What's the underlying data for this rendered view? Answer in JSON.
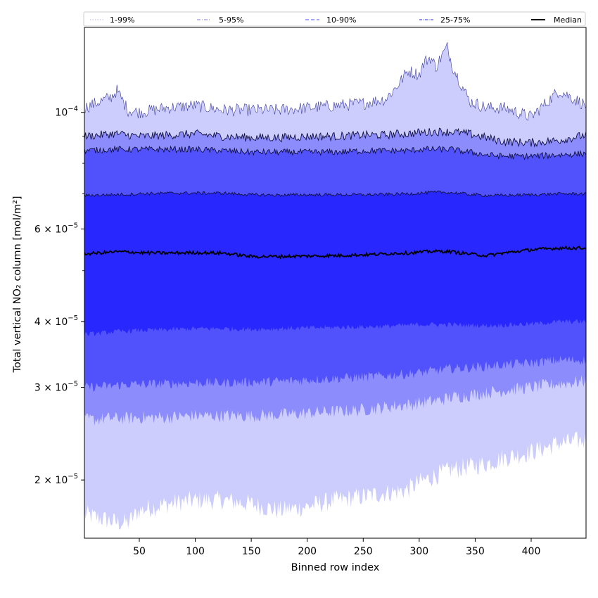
{
  "chart_data": {
    "type": "area",
    "title": "",
    "xlabel": "Binned row index",
    "ylabel": "Total vertical NO₂ column [mol/m²]",
    "y_scale": "log",
    "xlim": [
      1,
      449
    ],
    "ylim": [
      1.55e-05,
      0.000145
    ],
    "x_ticks": [
      50,
      100,
      150,
      200,
      250,
      300,
      350,
      400
    ],
    "y_ticks": [
      {
        "value": 2e-05,
        "mantissa": "2",
        "exponent": "−5"
      },
      {
        "value": 3e-05,
        "mantissa": "3",
        "exponent": "−5"
      },
      {
        "value": 4e-05,
        "mantissa": "4",
        "exponent": "−5"
      },
      {
        "value": 6e-05,
        "mantissa": "6",
        "exponent": "−5"
      },
      {
        "value": 0.0001,
        "mantissa": "10",
        "exponent": "−4"
      }
    ],
    "legend_placement": "top (horizontal strip)",
    "grid": false,
    "x": [
      1,
      25,
      30,
      40,
      50,
      75,
      100,
      125,
      150,
      175,
      200,
      225,
      250,
      270,
      280,
      290,
      300,
      305,
      310,
      315,
      320,
      325,
      330,
      335,
      345,
      360,
      375,
      400,
      425,
      449
    ],
    "series": [
      {
        "name": "1-99%",
        "style": "dotted",
        "color": "#c4c4ee",
        "fill": "#cccdfc",
        "lower": [
          1.72e-05,
          1.67e-05,
          1.66e-05,
          1.66e-05,
          1.75e-05,
          1.8e-05,
          1.83e-05,
          1.83e-05,
          1.8e-05,
          1.75e-05,
          1.78e-05,
          1.83e-05,
          1.86e-05,
          1.89e-05,
          1.9e-05,
          1.92e-05,
          1.98e-05,
          2e-05,
          2.02e-05,
          2.04e-05,
          2.06e-05,
          2.08e-05,
          2.1e-05,
          2.1e-05,
          2.12e-05,
          2.15e-05,
          2.2e-05,
          2.26e-05,
          2.35e-05,
          2.38e-05
        ],
        "upper": [
          0.000102,
          0.000107,
          0.00011,
          0.000101,
          0.0001,
          0.000102,
          0.000103,
          0.000101,
          0.000101,
          0.000101,
          0.000102,
          0.000103,
          0.000104,
          0.000106,
          0.000112,
          0.00012,
          0.000118,
          0.000125,
          0.000127,
          0.000122,
          0.000128,
          0.000133,
          0.000122,
          0.000116,
          0.000105,
          0.000102,
          0.000102,
          9.8e-05,
          0.00011,
          0.000103
        ]
      },
      {
        "name": "5-95%",
        "style": "dash-dot",
        "color": "#9999dd",
        "fill": "#8c8cfc",
        "lower": [
          2.6e-05,
          2.62e-05,
          2.62e-05,
          2.62e-05,
          2.63e-05,
          2.63e-05,
          2.65e-05,
          2.65e-05,
          2.65e-05,
          2.66e-05,
          2.68e-05,
          2.7e-05,
          2.72e-05,
          2.75e-05,
          2.77e-05,
          2.78e-05,
          2.8e-05,
          2.81e-05,
          2.82e-05,
          2.83e-05,
          2.84e-05,
          2.86e-05,
          2.88e-05,
          2.88e-05,
          2.9e-05,
          2.93e-05,
          2.96e-05,
          3e-05,
          3.05e-05,
          3.08e-05
        ],
        "upper": [
          9e-05,
          9.1e-05,
          9.1e-05,
          9.05e-05,
          9e-05,
          9.05e-05,
          9.1e-05,
          9e-05,
          8.95e-05,
          8.95e-05,
          9e-05,
          9e-05,
          9.05e-05,
          9.05e-05,
          9.1e-05,
          9.1e-05,
          9.15e-05,
          9.15e-05,
          9.18e-05,
          9.18e-05,
          9.2e-05,
          9.18e-05,
          9.18e-05,
          9.15e-05,
          9.1e-05,
          8.95e-05,
          8.8e-05,
          8.75e-05,
          8.85e-05,
          9.05e-05
        ]
      },
      {
        "name": "10-90%",
        "style": "dashed",
        "color": "#7070ee",
        "fill": "#5252fd",
        "lower": [
          3e-05,
          3.02e-05,
          3.03e-05,
          3.04e-05,
          3.04e-05,
          3.05e-05,
          3.06e-05,
          3.06e-05,
          3.07e-05,
          3.08e-05,
          3.1e-05,
          3.12e-05,
          3.14e-05,
          3.16e-05,
          3.17e-05,
          3.18e-05,
          3.2e-05,
          3.21e-05,
          3.22e-05,
          3.23e-05,
          3.24e-05,
          3.25e-05,
          3.26e-05,
          3.26e-05,
          3.27e-05,
          3.29e-05,
          3.31e-05,
          3.34e-05,
          3.38e-05,
          3.38e-05
        ],
        "upper": [
          8.45e-05,
          8.5e-05,
          8.5e-05,
          8.5e-05,
          8.5e-05,
          8.5e-05,
          8.5e-05,
          8.45e-05,
          8.4e-05,
          8.4e-05,
          8.4e-05,
          8.4e-05,
          8.45e-05,
          8.45e-05,
          8.45e-05,
          8.45e-05,
          8.5e-05,
          8.5e-05,
          8.5e-05,
          8.5e-05,
          8.5e-05,
          8.5e-05,
          8.5e-05,
          8.45e-05,
          8.4e-05,
          8.3e-05,
          8.25e-05,
          8.25e-05,
          8.3e-05,
          8.35e-05
        ]
      },
      {
        "name": "25-75%",
        "style": "dash-dot-dense",
        "color": "#5555dd",
        "fill": "#2828fe",
        "lower": [
          3.78e-05,
          3.82e-05,
          3.83e-05,
          3.84e-05,
          3.85e-05,
          3.86e-05,
          3.88e-05,
          3.88e-05,
          3.87e-05,
          3.88e-05,
          3.89e-05,
          3.9e-05,
          3.91e-05,
          3.92e-05,
          3.93e-05,
          3.94e-05,
          3.95e-05,
          3.95e-05,
          3.95e-05,
          3.95e-05,
          3.95e-05,
          3.95e-05,
          3.95e-05,
          3.94e-05,
          3.94e-05,
          3.93e-05,
          3.94e-05,
          3.96e-05,
          4e-05,
          4e-05
        ],
        "upper": [
          6.95e-05,
          6.97e-05,
          6.98e-05,
          6.98e-05,
          7e-05,
          7.02e-05,
          7.02e-05,
          7.02e-05,
          6.97e-05,
          6.96e-05,
          6.97e-05,
          6.97e-05,
          6.97e-05,
          6.98e-05,
          6.99e-05,
          7e-05,
          7.02e-05,
          7.03e-05,
          7.04e-05,
          7.04e-05,
          7.05e-05,
          7.04e-05,
          7.03e-05,
          7.02e-05,
          6.98e-05,
          6.95e-05,
          6.95e-05,
          6.97e-05,
          7e-05,
          7e-05
        ]
      },
      {
        "name": "Median",
        "style": "solid",
        "color": "#000000",
        "values": [
          5.38e-05,
          5.42e-05,
          5.43e-05,
          5.43e-05,
          5.41e-05,
          5.4e-05,
          5.41e-05,
          5.4e-05,
          5.32e-05,
          5.32e-05,
          5.33e-05,
          5.34e-05,
          5.36e-05,
          5.38e-05,
          5.4e-05,
          5.4e-05,
          5.42e-05,
          5.43e-05,
          5.44e-05,
          5.44e-05,
          5.44e-05,
          5.44e-05,
          5.43e-05,
          5.41e-05,
          5.38e-05,
          5.34e-05,
          5.4e-05,
          5.48e-05,
          5.52e-05,
          5.52e-05
        ]
      }
    ]
  }
}
